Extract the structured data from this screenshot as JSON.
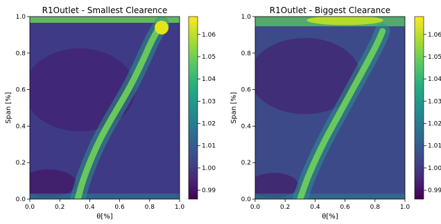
{
  "chart_data": [
    {
      "type": "heatmap",
      "title": "R1Outlet - Smallest Clearence",
      "xlabel": "θ[%]",
      "ylabel": "Span [%]",
      "xlim": [
        0.0,
        1.0
      ],
      "ylim": [
        0.0,
        1.0
      ],
      "xticks": [
        "0.0",
        "0.2",
        "0.4",
        "0.6",
        "0.8",
        "1.0"
      ],
      "yticks": [
        "0.0",
        "0.2",
        "0.4",
        "0.6",
        "0.8",
        "1.0"
      ],
      "colorbar": {
        "ticks": [
          "0.99",
          "1.00",
          "1.01",
          "1.02",
          "1.03",
          "1.04",
          "1.05",
          "1.06"
        ],
        "range": [
          0.986,
          1.068
        ],
        "colormap": "viridis"
      },
      "features": {
        "background": 0.994,
        "wake_centerline": [
          [
            0.32,
            0.0
          ],
          [
            0.36,
            0.12
          ],
          [
            0.45,
            0.3
          ],
          [
            0.55,
            0.45
          ],
          [
            0.66,
            0.6
          ],
          [
            0.75,
            0.75
          ],
          [
            0.82,
            0.88
          ],
          [
            0.88,
            0.96
          ]
        ],
        "wake_peak": 1.03,
        "hot_spot": {
          "x": 0.88,
          "y": 0.94,
          "value": 1.067
        },
        "top_band_value": 1.045
      }
    },
    {
      "type": "heatmap",
      "title": "R1Outlet - Biggest Clearance",
      "xlabel": "θ[%]",
      "ylabel": "Span [%]",
      "xlim": [
        0.0,
        1.0
      ],
      "ylim": [
        0.0,
        1.0
      ],
      "xticks": [
        "0.0",
        "0.2",
        "0.4",
        "0.6",
        "0.8",
        "1.0"
      ],
      "yticks": [
        "0.0",
        "0.2",
        "0.4",
        "0.6",
        "0.8",
        "1.0"
      ],
      "colorbar": {
        "ticks": [
          "0.99",
          "1.00",
          "1.01",
          "1.02",
          "1.03",
          "1.04",
          "1.05",
          "1.06"
        ],
        "range": [
          0.986,
          1.068
        ],
        "colormap": "viridis"
      },
      "features": {
        "background": 0.994,
        "wake_centerline": [
          [
            0.3,
            0.0
          ],
          [
            0.35,
            0.12
          ],
          [
            0.45,
            0.3
          ],
          [
            0.55,
            0.45
          ],
          [
            0.65,
            0.6
          ],
          [
            0.75,
            0.75
          ],
          [
            0.82,
            0.86
          ],
          [
            0.85,
            0.92
          ]
        ],
        "wake_peak": 1.03,
        "hot_spot": {
          "x": 0.6,
          "y": 0.98,
          "value": 1.058
        },
        "top_band_value": 1.05
      }
    }
  ]
}
